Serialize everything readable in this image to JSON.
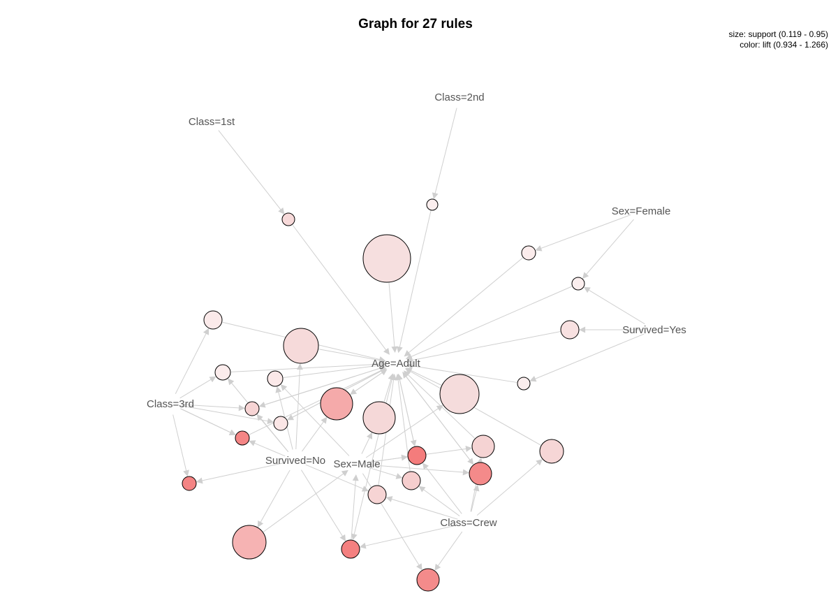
{
  "title": "Graph for 27 rules",
  "legend": {
    "size": "size: support (0.119 - 0.95)",
    "color": "color: lift (0.934 - 1.266)"
  },
  "colors": {
    "edge": "#cfcfcf",
    "label": "#555555",
    "low_lift": "#ffffff",
    "high_lift": "#f47f7f"
  },
  "items": [
    {
      "id": "class1",
      "label": "Class=1st"
    },
    {
      "id": "class2",
      "label": "Class=2nd"
    },
    {
      "id": "female",
      "label": "Sex=Female"
    },
    {
      "id": "survyes",
      "label": "Survived=Yes"
    },
    {
      "id": "adult",
      "label": "Age=Adult"
    },
    {
      "id": "class3",
      "label": "Class=3rd"
    },
    {
      "id": "survno",
      "label": "Survived=No"
    },
    {
      "id": "male",
      "label": "Sex=Male"
    },
    {
      "id": "crew",
      "label": "Class=Crew"
    }
  ]
}
